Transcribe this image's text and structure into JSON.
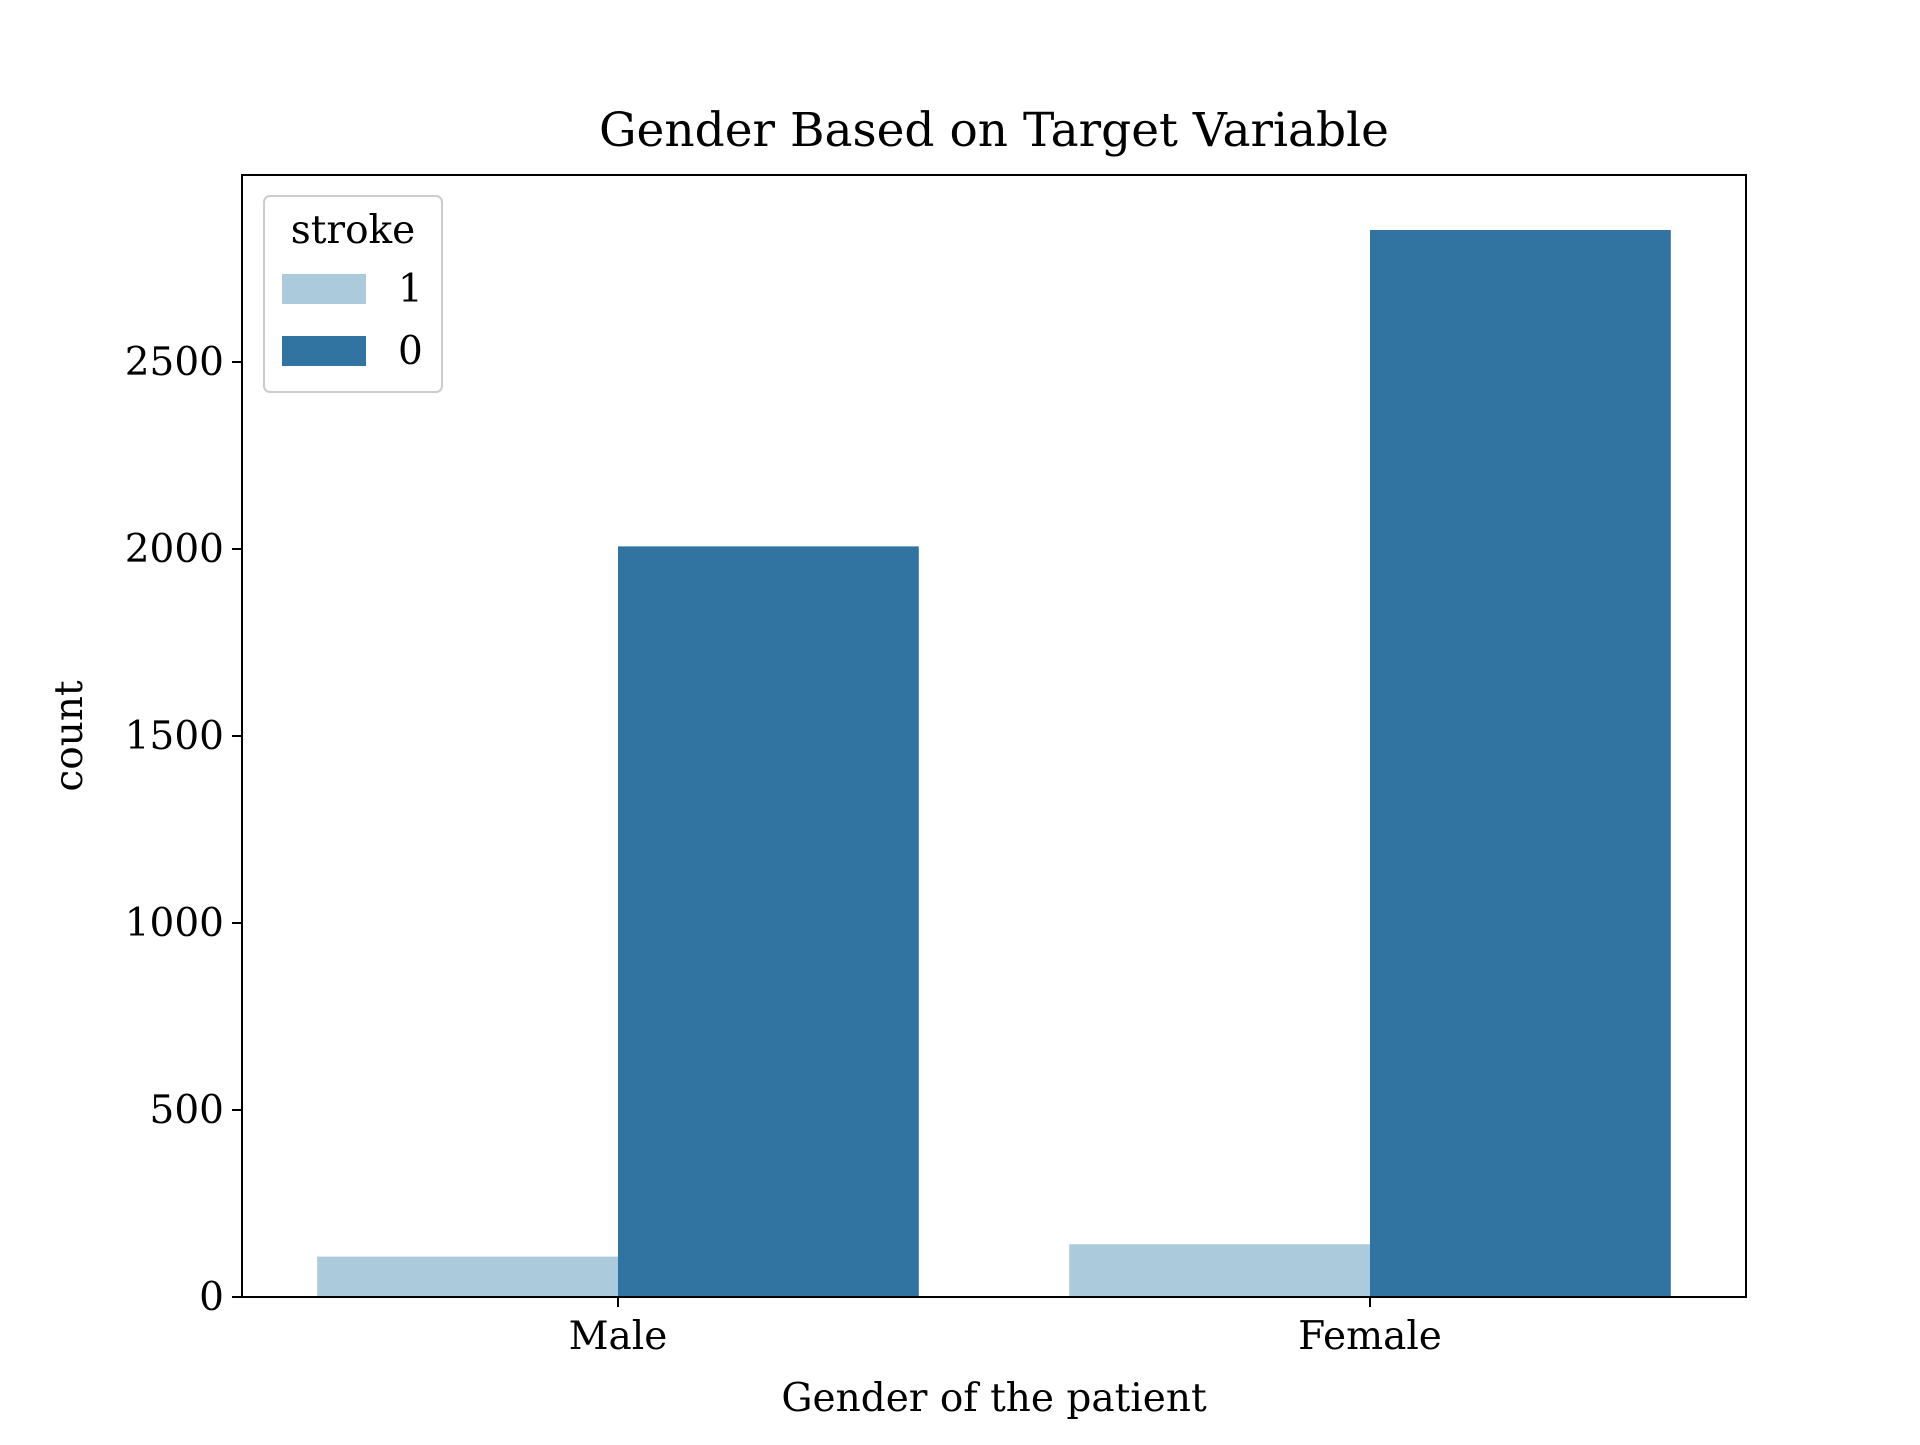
{
  "chart_data": {
    "type": "bar",
    "title": "Gender Based on Target Variable",
    "xlabel": "Gender of the patient",
    "ylabel": "count",
    "categories": [
      "Male",
      "Female"
    ],
    "series": [
      {
        "name": "1",
        "values": [
          108,
          141
        ],
        "color": "#abcbdc"
      },
      {
        "name": "0",
        "values": [
          2007,
          2853
        ],
        "color": "#3274a1"
      }
    ],
    "ylim": [
      0,
      3000
    ],
    "yticks": [
      0,
      500,
      1000,
      1500,
      2000,
      2500
    ],
    "legend": {
      "title": "stroke",
      "placement": "top-left"
    },
    "grid": false
  }
}
